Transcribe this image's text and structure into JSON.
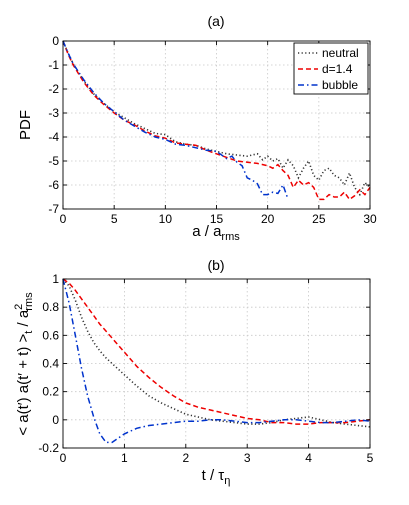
{
  "chart_data": [
    {
      "type": "line",
      "title": "(a)",
      "xlabel": "a / a",
      "xlabel_sub": "rms",
      "ylabel": "PDF",
      "xlim": [
        0,
        30
      ],
      "ylim": [
        -7,
        0
      ],
      "xticks": [
        0,
        5,
        10,
        15,
        20,
        25,
        30
      ],
      "yticks": [
        0,
        -1,
        -2,
        -3,
        -4,
        -5,
        -6,
        -7
      ],
      "grid": true,
      "legend_position": "top-right",
      "series": [
        {
          "name": "neutral",
          "color": "#333333",
          "dash": "dotted",
          "x": [
            0,
            0.5,
            1,
            2,
            3,
            4,
            5,
            6,
            7,
            8,
            9,
            10,
            11,
            12,
            13,
            14,
            15,
            16,
            17,
            18,
            19,
            19.5,
            20,
            20.5,
            21,
            21.5,
            22,
            22.5,
            23,
            23.5,
            24,
            24.5,
            25,
            25.5,
            26,
            26.5,
            27,
            27.5,
            28,
            28.5,
            29,
            29.5,
            30
          ],
          "y": [
            0,
            -0.5,
            -0.95,
            -1.65,
            -2.2,
            -2.6,
            -2.95,
            -3.2,
            -3.45,
            -3.65,
            -3.85,
            -3.9,
            -4.2,
            -4.3,
            -4.35,
            -4.5,
            -4.6,
            -4.7,
            -4.75,
            -4.8,
            -4.7,
            -4.95,
            -4.8,
            -5.0,
            -4.9,
            -5.3,
            -4.95,
            -5.2,
            -5.7,
            -5.3,
            -5.0,
            -5.6,
            -5.8,
            -5.4,
            -5.3,
            -5.6,
            -5.7,
            -6.0,
            -5.5,
            -6.1,
            -6.4,
            -5.9,
            -6.1
          ]
        },
        {
          "name": "d=1.4",
          "color": "#ee0000",
          "dash": "dashed",
          "x": [
            0,
            0.5,
            1,
            2,
            3,
            4,
            5,
            6,
            7,
            8,
            9,
            10,
            11,
            12,
            13,
            14,
            15,
            16,
            17,
            18,
            19,
            20,
            20.5,
            21,
            21.5,
            22,
            22.5,
            23,
            23.5,
            24,
            24.5,
            25,
            25.5,
            26,
            26.5,
            27,
            27.5,
            28,
            28.5,
            29,
            29.5,
            30
          ],
          "y": [
            0,
            -0.55,
            -1.0,
            -1.7,
            -2.25,
            -2.65,
            -3.0,
            -3.3,
            -3.5,
            -3.75,
            -3.95,
            -4.05,
            -4.25,
            -4.3,
            -4.35,
            -4.55,
            -4.7,
            -4.85,
            -5.0,
            -5.05,
            -5.1,
            -5.2,
            -5.3,
            -5.15,
            -5.4,
            -5.6,
            -6.1,
            -5.8,
            -6.0,
            -5.9,
            -6.1,
            -6.6,
            -6.6,
            -6.4,
            -6.5,
            -6.5,
            -6.3,
            -6.6,
            -6.45,
            -6.2,
            -6.4,
            -6.1
          ]
        },
        {
          "name": "bubble",
          "color": "#0033cc",
          "dash": "dashdot",
          "x": [
            0,
            0.5,
            1,
            2,
            3,
            4,
            5,
            6,
            7,
            8,
            9,
            10,
            11,
            12,
            13,
            14,
            15,
            16,
            16.5,
            17,
            17.5,
            18,
            18.5,
            19,
            19.5,
            20,
            20.5,
            21,
            21.5,
            22
          ],
          "y": [
            0,
            -0.5,
            -0.95,
            -1.6,
            -2.15,
            -2.6,
            -2.95,
            -3.3,
            -3.55,
            -3.8,
            -4.0,
            -4.1,
            -4.3,
            -4.35,
            -4.45,
            -4.55,
            -4.6,
            -4.9,
            -4.8,
            -5.05,
            -5.2,
            -5.7,
            -5.8,
            -5.95,
            -6.4,
            -6.4,
            -6.3,
            -6.35,
            -6.0,
            -6.6
          ]
        }
      ]
    },
    {
      "type": "line",
      "title": "(b)",
      "xlabel": "t / τ",
      "xlabel_sub": "η",
      "ylabel": "< a(t′) a(t′ + t) >",
      "ylabel_sub": "t",
      "ylabel_tail": " / a",
      "ylabel_sup": "2",
      "ylabel_sub2": "rms",
      "xlim": [
        0,
        5
      ],
      "ylim": [
        -0.2,
        1
      ],
      "xticks": [
        0,
        1,
        2,
        3,
        4,
        5
      ],
      "yticks": [
        1,
        0.8,
        0.6,
        0.4,
        0.2,
        0,
        -0.2
      ],
      "grid": true,
      "series": [
        {
          "name": "neutral",
          "color": "#333333",
          "dash": "dotted",
          "x": [
            0,
            0.1,
            0.2,
            0.3,
            0.4,
            0.5,
            0.6,
            0.7,
            0.8,
            1.0,
            1.2,
            1.4,
            1.6,
            1.8,
            2.0,
            2.2,
            2.4,
            2.6,
            2.8,
            3.0,
            3.2,
            3.4,
            3.6,
            3.8,
            4.0,
            4.2,
            4.4,
            4.6,
            4.8,
            5.0
          ],
          "y": [
            1.0,
            0.95,
            0.85,
            0.73,
            0.63,
            0.55,
            0.49,
            0.44,
            0.4,
            0.32,
            0.24,
            0.17,
            0.12,
            0.08,
            0.04,
            0.02,
            0.0,
            -0.01,
            -0.02,
            -0.03,
            -0.03,
            -0.02,
            0.0,
            0.01,
            0.02,
            0.0,
            -0.02,
            -0.03,
            -0.04,
            -0.05
          ]
        },
        {
          "name": "d=1.4",
          "color": "#ee0000",
          "dash": "dashed",
          "x": [
            0,
            0.1,
            0.2,
            0.3,
            0.4,
            0.5,
            0.6,
            0.8,
            1.0,
            1.2,
            1.4,
            1.6,
            1.8,
            2.0,
            2.2,
            2.4,
            2.6,
            2.8,
            3.0,
            3.2,
            3.4,
            3.6,
            3.8,
            4.0,
            4.2,
            4.4,
            4.6,
            4.8,
            5.0
          ],
          "y": [
            1.0,
            0.97,
            0.92,
            0.86,
            0.8,
            0.74,
            0.68,
            0.58,
            0.48,
            0.38,
            0.3,
            0.23,
            0.17,
            0.12,
            0.09,
            0.07,
            0.05,
            0.03,
            0.01,
            0.0,
            -0.02,
            -0.02,
            -0.03,
            -0.03,
            -0.02,
            -0.02,
            -0.02,
            -0.01,
            0.0
          ]
        },
        {
          "name": "bubble",
          "color": "#0033cc",
          "dash": "dashdot",
          "x": [
            0,
            0.1,
            0.2,
            0.3,
            0.4,
            0.5,
            0.6,
            0.7,
            0.8,
            0.9,
            1.0,
            1.2,
            1.4,
            1.6,
            1.8,
            2.0,
            2.2,
            2.4,
            2.6,
            2.8,
            3.0,
            3.2,
            3.4,
            3.6,
            3.8,
            4.0,
            4.2,
            4.4,
            4.6,
            4.8,
            5.0
          ],
          "y": [
            1.0,
            0.83,
            0.6,
            0.37,
            0.17,
            0.02,
            -0.1,
            -0.16,
            -0.16,
            -0.13,
            -0.1,
            -0.06,
            -0.04,
            -0.03,
            -0.02,
            -0.01,
            -0.01,
            0.0,
            0.0,
            -0.01,
            -0.02,
            -0.02,
            -0.01,
            0.0,
            0.0,
            -0.01,
            -0.02,
            -0.02,
            -0.01,
            0.0,
            -0.01
          ]
        }
      ]
    }
  ]
}
